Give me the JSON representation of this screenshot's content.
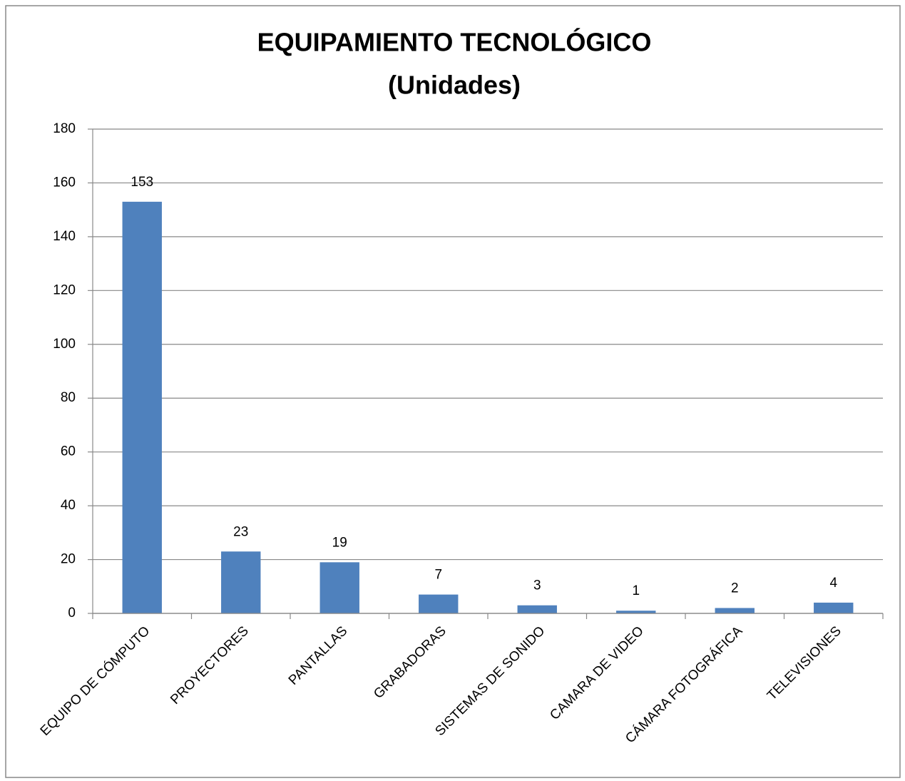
{
  "chart_data": {
    "type": "bar",
    "title": "EQUIPAMIENTO TECNOLÓGICO",
    "subtitle": "(Unidades)",
    "categories": [
      "EQUIPO DE CÓMPUTO",
      "PROYECTORES",
      "PANTALLAS",
      "GRABADORAS",
      "SISTEMAS DE SONIDO",
      "CAMARA DE VIDEO",
      "CÁMARA FOTOGRÁFICA",
      "TELEVISIONES"
    ],
    "values": [
      153,
      23,
      19,
      7,
      3,
      1,
      2,
      4
    ],
    "color": "#4f81bd",
    "ylim": [
      0,
      180
    ],
    "yticks": [
      0,
      20,
      40,
      60,
      80,
      100,
      120,
      140,
      160,
      180
    ],
    "grid": true
  }
}
